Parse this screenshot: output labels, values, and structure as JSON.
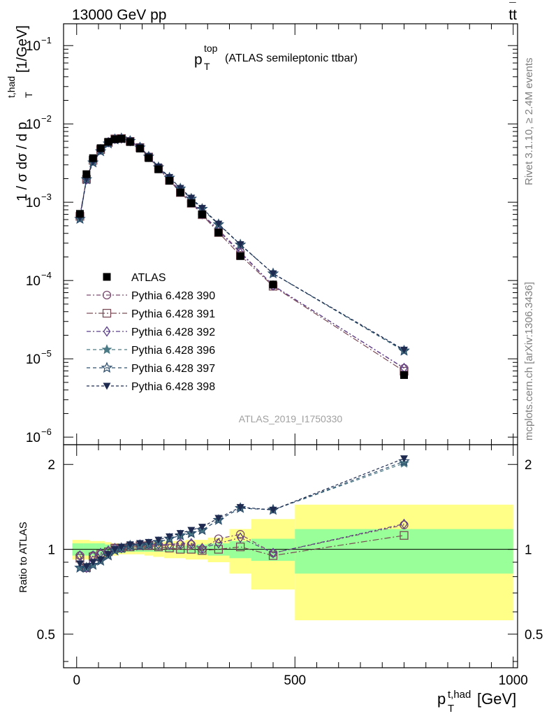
{
  "header": {
    "left": "13000 GeV pp",
    "right_main": "tt",
    "right_bar": "¯"
  },
  "sidebar": {
    "version": "Rivet 3.1.10, ≥ 2.4M events",
    "site": "mcplots.cern.ch [arXiv:1306.3436]"
  },
  "top_panel": {
    "title_main": "p",
    "title_sup": "top",
    "title_sub": "T",
    "title_rest": "(ATLAS semileptonic ttbar)",
    "ylabel_a": "1 / σ dσ / d p",
    "ylabel_sup": "t,had",
    "ylabel_sub": "T",
    "ylabel_unit": "[1/GeV]",
    "watermark": "ATLAS_2019_I1750330",
    "yticks": [
      {
        "base": "10",
        "exp": "−6",
        "v": 1e-06
      },
      {
        "base": "10",
        "exp": "−5",
        "v": 1e-05
      },
      {
        "base": "10",
        "exp": "−4",
        "v": 0.0001
      },
      {
        "base": "10",
        "exp": "−3",
        "v": 0.001
      },
      {
        "base": "10",
        "exp": "−2",
        "v": 0.01
      },
      {
        "base": "10",
        "exp": "−1",
        "v": 0.1
      }
    ]
  },
  "bottom_panel": {
    "ylabel": "Ratio to ATLAS",
    "yticks": [
      "0.5",
      "1",
      "2"
    ],
    "xticks": [
      "0",
      "500",
      "1000"
    ],
    "xlabel_main": "p",
    "xlabel_sup": "t,had",
    "xlabel_sub": "T",
    "xlabel_unit": "[GeV]"
  },
  "chart_data": {
    "type": "scatter",
    "xlim": [
      -30,
      1010
    ],
    "ylim_top": [
      8e-07,
      0.19
    ],
    "yscale_top": "log",
    "ylim_ratio": [
      0.38,
      2.35
    ],
    "yscale_ratio": "log",
    "legend_position": "left-middle",
    "x": [
      7.5,
      22.5,
      37.5,
      55,
      72.5,
      87.5,
      102.5,
      122.5,
      145,
      165,
      187.5,
      212.5,
      237.5,
      262.5,
      287.5,
      325,
      375,
      450,
      750
    ],
    "data": {
      "name": "ATLAS",
      "values": [
        0.00071,
        0.00228,
        0.00365,
        0.0049,
        0.0059,
        0.00637,
        0.00645,
        0.00587,
        0.00484,
        0.00366,
        0.00263,
        0.00188,
        0.00133,
        0.00097,
        0.0007,
        0.00041,
        0.000205,
        8.9e-05,
        6.2e-06
      ],
      "band_stat": [
        [
          -10,
          15,
          0.05
        ],
        [
          15,
          30,
          0.05
        ],
        [
          30,
          45,
          0.05
        ],
        [
          45,
          65,
          0.05
        ],
        [
          65,
          80,
          0.04
        ],
        [
          80,
          95,
          0.03
        ],
        [
          95,
          110,
          0.03
        ],
        [
          110,
          135,
          0.02
        ],
        [
          135,
          155,
          0.02
        ],
        [
          155,
          175,
          0.02
        ],
        [
          175,
          200,
          0.02
        ],
        [
          200,
          225,
          0.02
        ],
        [
          225,
          250,
          0.03
        ],
        [
          250,
          275,
          0.03
        ],
        [
          275,
          300,
          0.04
        ],
        [
          300,
          350,
          0.05
        ],
        [
          350,
          400,
          0.07
        ],
        [
          400,
          500,
          0.09
        ],
        [
          500,
          1000,
          0.18
        ]
      ],
      "band_tot": [
        [
          -10,
          15,
          0.08
        ],
        [
          15,
          30,
          0.08
        ],
        [
          30,
          45,
          0.07
        ],
        [
          45,
          65,
          0.07
        ],
        [
          65,
          80,
          0.06
        ],
        [
          80,
          95,
          0.05
        ],
        [
          95,
          110,
          0.04
        ],
        [
          110,
          135,
          0.04
        ],
        [
          135,
          155,
          0.04
        ],
        [
          155,
          175,
          0.05
        ],
        [
          175,
          200,
          0.06
        ],
        [
          200,
          225,
          0.07
        ],
        [
          225,
          250,
          0.07
        ],
        [
          250,
          275,
          0.08
        ],
        [
          275,
          300,
          0.08
        ],
        [
          300,
          350,
          0.1
        ],
        [
          350,
          400,
          0.18
        ],
        [
          400,
          500,
          0.28
        ],
        [
          500,
          1000,
          0.44
        ]
      ]
    },
    "series": [
      {
        "name": "Pythia 6.428 390",
        "color": "#7a4b6f",
        "marker": "circle-open",
        "dash": "6,3,2,3",
        "ratio": [
          0.95,
          0.86,
          0.95,
          0.96,
          0.98,
          1.01,
          1.01,
          1.03,
          1.04,
          1.04,
          1.03,
          1.03,
          1.04,
          1.04,
          1.0,
          1.09,
          1.13,
          0.97,
          1.22
        ]
      },
      {
        "name": "Pythia 6.428 391",
        "color": "#7a4b56",
        "marker": "square-open",
        "dash": "9,3,2,3",
        "ratio": [
          0.93,
          0.86,
          0.94,
          0.96,
          0.98,
          1.01,
          1.01,
          1.02,
          1.03,
          1.03,
          1.02,
          1.01,
          1.0,
          1.0,
          0.99,
          1.0,
          1.02,
          0.95,
          1.12
        ]
      },
      {
        "name": "Pythia 6.428 392",
        "color": "#5a3d8a",
        "marker": "diamond-open",
        "dash": "6,3,2,3",
        "ratio": [
          0.95,
          0.86,
          0.95,
          0.97,
          0.99,
          1.01,
          1.01,
          1.03,
          1.04,
          1.04,
          1.04,
          1.04,
          1.05,
          1.05,
          1.01,
          1.05,
          1.1,
          0.97,
          1.23
        ]
      },
      {
        "name": "Pythia 6.428 396",
        "color": "#4a7a85",
        "marker": "star-filled",
        "dash": "5,4",
        "ratio": [
          0.86,
          0.86,
          0.88,
          0.91,
          0.95,
          0.99,
          1.01,
          1.03,
          1.03,
          1.04,
          1.06,
          1.09,
          1.12,
          1.14,
          1.17,
          1.27,
          1.4,
          1.38,
          2.02
        ]
      },
      {
        "name": "Pythia 6.428 397",
        "color": "#2f4f6e",
        "marker": "star-open",
        "dash": "5,4",
        "ratio": [
          0.86,
          0.86,
          0.88,
          0.91,
          0.95,
          0.99,
          1.01,
          1.03,
          1.03,
          1.04,
          1.06,
          1.09,
          1.12,
          1.14,
          1.17,
          1.27,
          1.4,
          1.38,
          2.05
        ]
      },
      {
        "name": "Pythia 6.428 398",
        "color": "#1e2a4f",
        "marker": "triangle-down-filled",
        "dash": "4,3",
        "ratio": [
          0.89,
          0.87,
          0.9,
          0.92,
          0.96,
          1.0,
          1.02,
          1.04,
          1.05,
          1.06,
          1.08,
          1.11,
          1.14,
          1.17,
          1.2,
          1.29,
          1.41,
          1.38,
          2.1
        ]
      }
    ]
  }
}
